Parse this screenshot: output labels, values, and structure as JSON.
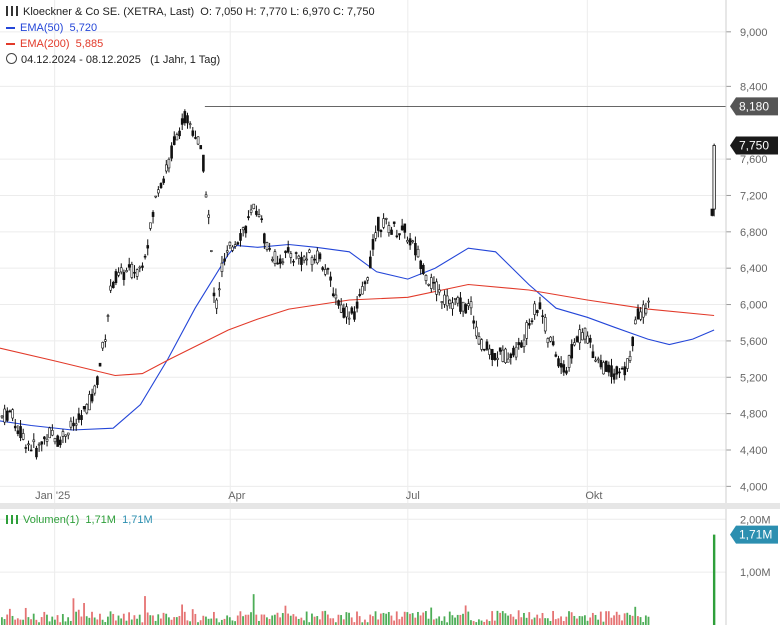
{
  "header": {
    "instrument": "Kloeckner & Co SE. (XETRA, Last)",
    "ohlc": "O: 7,050  H: 7,770  L: 6,970  C: 7,750",
    "range_text": "04.12.2024 - 08.12.2025",
    "interval_text": "(1 Jahr, 1 Tag)"
  },
  "colors": {
    "up": "#2e9f3a",
    "down": "#e05a5a",
    "ema50": "#2446d8",
    "ema200": "#e23a2a",
    "candle": "#111111",
    "tag": "#1a1a1a",
    "vol_tag": "#2c8fb0"
  },
  "chart_data": [
    {
      "type": "candlestick",
      "title": "",
      "xlabel": "",
      "ylabel": "",
      "ylim": [
        3.85,
        9.35
      ],
      "x_ticks": [
        "Jan '25",
        "Apr",
        "Jul",
        "Okt"
      ],
      "y_ticks": [
        "9,000",
        "8,400",
        "7,600",
        "7,200",
        "6,800",
        "6,400",
        "6,000",
        "5,600",
        "5,200",
        "4,800",
        "4,400",
        "4,000"
      ],
      "grid": true,
      "legend": "top-left",
      "series": [
        {
          "name": "EMA(50)",
          "value_label": "5,720",
          "color": "#2446d8",
          "points": [
            [
              "2024-12-04",
              4.72
            ],
            [
              "2024-12-20",
              4.67
            ],
            [
              "2025-01-10",
              4.62
            ],
            [
              "2025-01-31",
              4.64
            ],
            [
              "2025-02-14",
              4.9
            ],
            [
              "2025-02-28",
              5.4
            ],
            [
              "2025-03-14",
              5.96
            ],
            [
              "2025-03-31",
              6.55
            ],
            [
              "2025-04-04",
              6.65
            ],
            [
              "2025-04-15",
              6.63
            ],
            [
              "2025-05-01",
              6.66
            ],
            [
              "2025-05-15",
              6.63
            ],
            [
              "2025-06-01",
              6.58
            ],
            [
              "2025-06-15",
              6.36
            ],
            [
              "2025-07-01",
              6.28
            ],
            [
              "2025-07-15",
              6.4
            ],
            [
              "2025-08-01",
              6.62
            ],
            [
              "2025-08-15",
              6.58
            ],
            [
              "2025-09-01",
              6.22
            ],
            [
              "2025-09-15",
              5.96
            ],
            [
              "2025-10-01",
              5.86
            ],
            [
              "2025-10-15",
              5.75
            ],
            [
              "2025-11-01",
              5.62
            ],
            [
              "2025-11-12",
              5.56
            ],
            [
              "2025-11-24",
              5.62
            ],
            [
              "2025-12-05",
              5.72
            ]
          ]
        },
        {
          "name": "EMA(200)",
          "value_label": "5,885",
          "color": "#e23a2a",
          "points": [
            [
              "2024-12-04",
              5.52
            ],
            [
              "2025-01-01",
              5.38
            ],
            [
              "2025-02-01",
              5.22
            ],
            [
              "2025-02-15",
              5.24
            ],
            [
              "2025-03-01",
              5.4
            ],
            [
              "2025-03-31",
              5.72
            ],
            [
              "2025-04-15",
              5.84
            ],
            [
              "2025-05-01",
              5.95
            ],
            [
              "2025-06-01",
              6.05
            ],
            [
              "2025-07-01",
              6.08
            ],
            [
              "2025-08-01",
              6.22
            ],
            [
              "2025-09-01",
              6.16
            ],
            [
              "2025-10-01",
              6.05
            ],
            [
              "2025-11-01",
              5.95
            ],
            [
              "2025-12-05",
              5.88
            ]
          ]
        }
      ],
      "candles": [
        [
          "2025-12-04",
          7.05,
          7.05,
          6.97,
          6.98
        ],
        [
          "2025-12-05",
          7.05,
          7.77,
          6.97,
          7.75
        ]
      ],
      "last_price_label": "7,750",
      "high_label": "8,180",
      "high_value": 8.18,
      "date_range": [
        "2024-12-04",
        "2025-12-08"
      ]
    },
    {
      "type": "bar",
      "title": "",
      "name": "Volumen(1)",
      "legend_text": "Volumen(1)",
      "value_text_1": "1,71M",
      "value_text_2": "1,71M",
      "y_ticks": [
        "2,00M",
        "1,00M"
      ],
      "ylim": [
        0,
        2.1
      ],
      "last_value": 1.71,
      "last_label": "1,71M"
    }
  ]
}
